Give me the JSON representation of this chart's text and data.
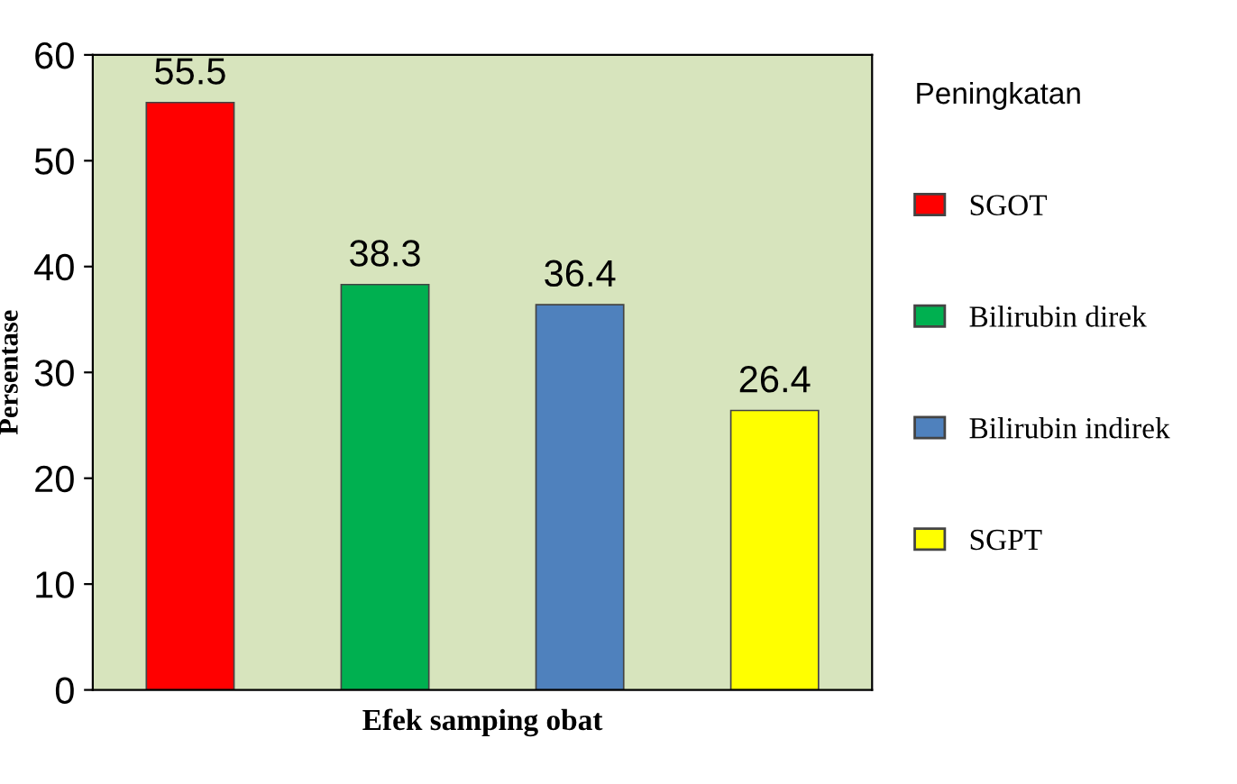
{
  "chart_data": {
    "type": "bar",
    "xlabel": "Efek samping obat",
    "ylabel": "Persentase",
    "legend_title": "Peningkatan",
    "categories": [
      null,
      null,
      null,
      null
    ],
    "series": [
      {
        "name": "SGOT",
        "color": "#ff0000",
        "values": [
          55.5,
          null,
          null,
          null
        ]
      },
      {
        "name": "Bilirubin direk",
        "color": "#00b050",
        "values": [
          null,
          38.3,
          null,
          null
        ]
      },
      {
        "name": "Bilirubin indirek",
        "color": "#4f81bd",
        "values": [
          null,
          null,
          36.4,
          null
        ]
      },
      {
        "name": "SGPT",
        "color": "#ffff00",
        "values": [
          null,
          null,
          null,
          26.4
        ]
      }
    ],
    "ylim": [
      0,
      60
    ],
    "yticks": [
      0,
      10,
      20,
      30,
      40,
      50,
      60
    ],
    "data_labels": true,
    "legend": "right",
    "grid": false
  }
}
